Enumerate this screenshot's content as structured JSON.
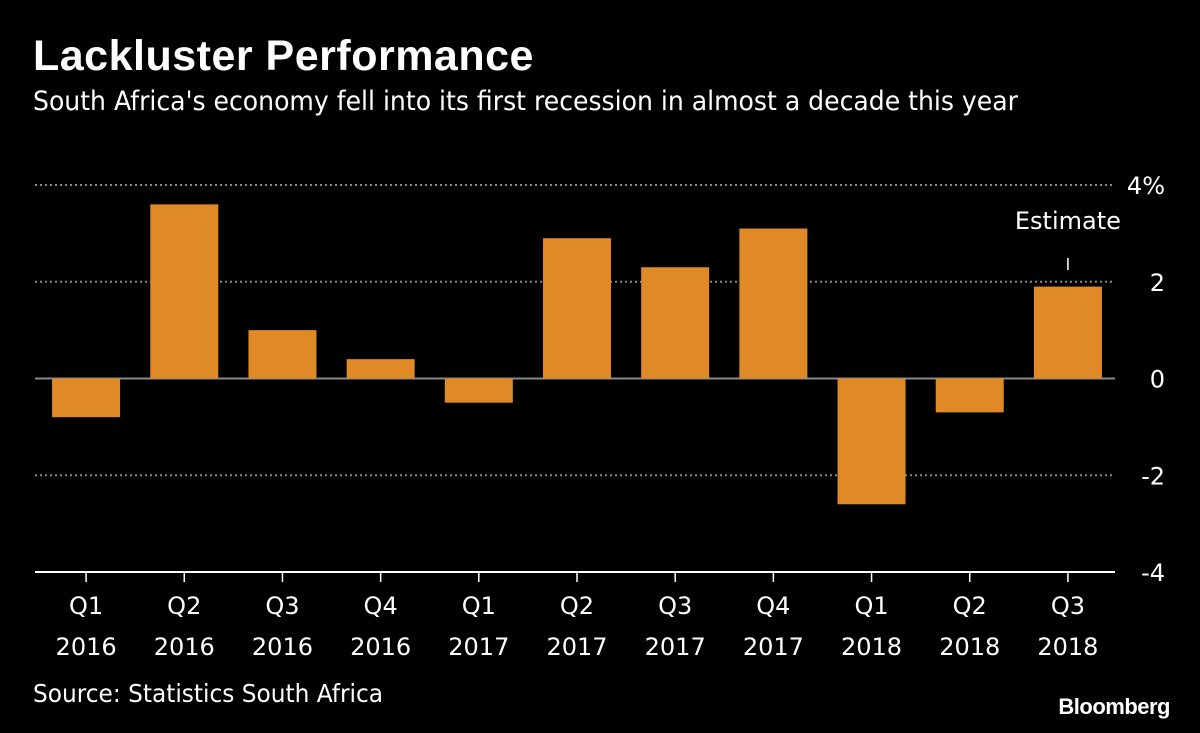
{
  "title": "Lackluster Performance",
  "subtitle": "South Africa's economy fell into its first recession in almost a decade this year",
  "source": "Source: Statistics South Africa",
  "logo": "Bloomberg",
  "chart_data": {
    "type": "bar",
    "title": "Lackluster Performance",
    "subtitle": "South Africa's economy fell into its first recession in almost a decade this year",
    "categories": [
      [
        "Q1",
        "2016"
      ],
      [
        "Q2",
        "2016"
      ],
      [
        "Q3",
        "2016"
      ],
      [
        "Q4",
        "2016"
      ],
      [
        "Q1",
        "2017"
      ],
      [
        "Q2",
        "2017"
      ],
      [
        "Q3",
        "2017"
      ],
      [
        "Q4",
        "2017"
      ],
      [
        "Q1",
        "2018"
      ],
      [
        "Q2",
        "2018"
      ],
      [
        "Q3",
        "2018"
      ]
    ],
    "values": [
      -0.8,
      3.6,
      1.0,
      0.4,
      -0.5,
      2.9,
      2.3,
      3.1,
      -2.6,
      -0.7,
      1.9
    ],
    "ylim": [
      -4,
      4
    ],
    "yticks": [
      {
        "value": 4,
        "label": "4%"
      },
      {
        "value": 2,
        "label": "2"
      },
      {
        "value": 0,
        "label": "0"
      },
      {
        "value": -2,
        "label": "-2"
      },
      {
        "value": -4,
        "label": "-4"
      }
    ],
    "y_axis_position": "right",
    "grid": true,
    "annotations": [
      {
        "category_index": 10,
        "text": "Estimate"
      }
    ],
    "bar_color": "#df8a26"
  }
}
